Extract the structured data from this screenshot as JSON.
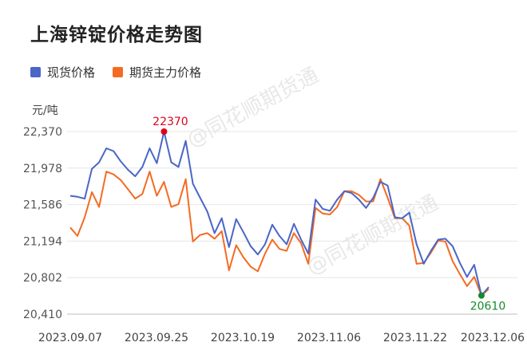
{
  "title": "上海锌锭价格走势图",
  "unit": "元/吨",
  "watermark": "@同花顺期货通",
  "colors": {
    "spot": "#4a66c7",
    "futures": "#f36b22",
    "max_marker": "#e0001a",
    "min_marker": "#148a2a",
    "grid": "#e6e6e6"
  },
  "chart_data": {
    "type": "line",
    "title": "上海锌锭价格走势图",
    "ylabel": "元/吨",
    "xlabel": "",
    "ylim": [
      20410,
      22370
    ],
    "yticks": [
      "22,370",
      "21,978",
      "21,586",
      "21,194",
      "20,802",
      "20,410"
    ],
    "ytick_values": [
      22370,
      21978,
      21586,
      21194,
      20802,
      20410
    ],
    "xticks": [
      "2023.09.07",
      "2023.09.25",
      "2023.10.19",
      "2023.11.06",
      "2023.11.22",
      "2023.12.06"
    ],
    "grid": true,
    "legend": "top-left",
    "series": [
      {
        "name": "现货价格",
        "color": "#4a66c7",
        "values": [
          21680,
          21670,
          21650,
          21970,
          22040,
          22190,
          22160,
          22050,
          21960,
          21890,
          21990,
          22190,
          22030,
          22370,
          22040,
          21990,
          22270,
          21810,
          21660,
          21510,
          21280,
          21440,
          21130,
          21430,
          21290,
          21140,
          21050,
          21160,
          21370,
          21250,
          21160,
          21380,
          21210,
          21060,
          21640,
          21540,
          21520,
          21640,
          21730,
          21710,
          21640,
          21550,
          21660,
          21830,
          21790,
          21450,
          21440,
          21500,
          21160,
          20950,
          21090,
          21210,
          21220,
          21140,
          20960,
          20810,
          20940,
          20610,
          20700
        ]
      },
      {
        "name": "期货主力价格",
        "color": "#f36b22",
        "values": [
          21340,
          21250,
          21450,
          21720,
          21560,
          21940,
          21910,
          21850,
          21750,
          21650,
          21700,
          21940,
          21680,
          21830,
          21560,
          21590,
          21860,
          21190,
          21260,
          21280,
          21220,
          21300,
          20880,
          21150,
          21020,
          20920,
          20870,
          21060,
          21210,
          21110,
          21090,
          21280,
          21170,
          20950,
          21550,
          21490,
          21480,
          21560,
          21730,
          21730,
          21690,
          21620,
          21620,
          21860,
          21660,
          21440,
          21440,
          21360,
          20950,
          20960,
          21070,
          21200,
          21190,
          20980,
          20840,
          20710,
          20810,
          20610,
          20680
        ]
      }
    ],
    "annotations": [
      {
        "label": "22370",
        "series": "现货价格",
        "index": 13,
        "kind": "max"
      },
      {
        "label": "20610",
        "series": "现货价格",
        "index": 57,
        "kind": "min"
      }
    ]
  }
}
